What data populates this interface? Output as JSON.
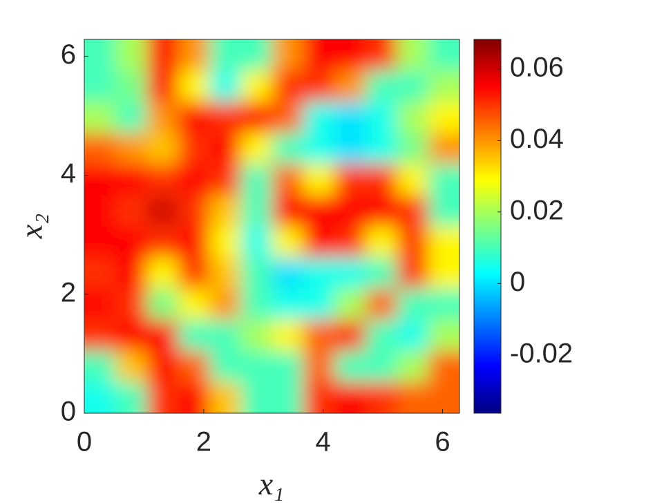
{
  "chart_data": {
    "type": "heatmap",
    "x_label": "x₁",
    "y_label": "x₂",
    "xlim": [
      0,
      6.2832
    ],
    "ylim": [
      0,
      6.2832
    ],
    "xticks": [
      0,
      2,
      4,
      6
    ],
    "yticks": [
      0,
      2,
      4,
      6
    ],
    "colormap": "jet",
    "clim": [
      -0.0363,
      0.0683
    ],
    "cticks": [
      -0.02,
      0,
      0.02,
      0.04,
      0.06
    ],
    "z": [
      [
        0.01,
        0.02,
        0.055,
        0.04,
        0.01,
        0.01,
        0.04,
        0.055,
        0.055,
        0.05,
        0.02,
        0.01
      ],
      [
        0.01,
        0.015,
        0.055,
        0.03,
        0.005,
        0.03,
        0.05,
        0.05,
        0.04,
        0.01,
        0.01,
        0.02
      ],
      [
        0.02,
        0.01,
        0.04,
        0.055,
        0.05,
        0.055,
        0.045,
        0.005,
        0,
        0.005,
        0.02,
        0.03
      ],
      [
        0.045,
        0.04,
        0.035,
        0.05,
        0.055,
        0.03,
        0.01,
        0.005,
        0,
        0.005,
        0.015,
        0.04
      ],
      [
        0.055,
        0.055,
        0.05,
        0.055,
        0.05,
        0.01,
        0.045,
        0.03,
        0.05,
        0.05,
        0.03,
        0.01
      ],
      [
        0.055,
        0.05,
        0.06,
        0.05,
        0.035,
        0.01,
        0.055,
        0.055,
        0.055,
        0.055,
        0.05,
        0.01
      ],
      [
        0.055,
        0.055,
        0.05,
        0.055,
        0.03,
        0.005,
        0.03,
        0.055,
        0.05,
        0.03,
        0.05,
        0.03
      ],
      [
        0.05,
        0.055,
        0.03,
        0.05,
        0.035,
        0.01,
        0,
        0.005,
        0.005,
        0.01,
        0.05,
        0.03
      ],
      [
        0.055,
        0.05,
        0.015,
        0.03,
        0.04,
        0.01,
        0.005,
        0.005,
        0.02,
        0.045,
        0.01,
        0.01
      ],
      [
        0.05,
        0.055,
        0.055,
        0.01,
        0.01,
        0.02,
        0.03,
        0.045,
        0.05,
        0.01,
        0.005,
        0.02
      ],
      [
        0.01,
        0.035,
        0.055,
        0.045,
        0.01,
        0.01,
        0.01,
        0.045,
        0.01,
        0.01,
        0.02,
        0.045
      ],
      [
        0.005,
        0.01,
        0.05,
        0.055,
        0.035,
        0.01,
        0.01,
        0.05,
        0.055,
        0.05,
        0.045,
        0.045
      ]
    ]
  }
}
